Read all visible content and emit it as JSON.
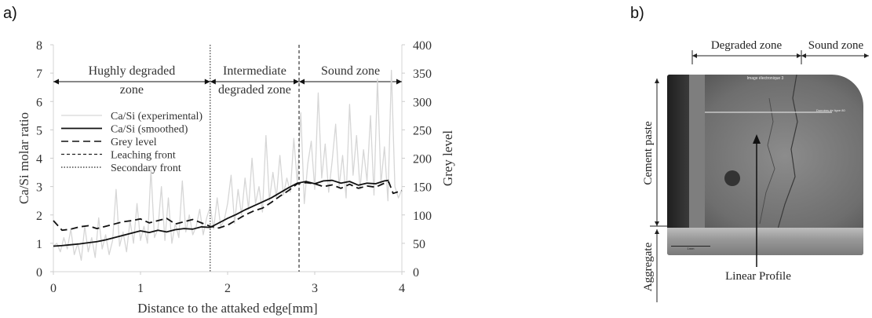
{
  "panel_labels": {
    "a": "a)",
    "b": "b)"
  },
  "chart_data": {
    "type": "line",
    "xlabel": "Distance to the attaked edge[mm]",
    "ylabel": "Ca/Si molar ratio",
    "y2label": "Grey level",
    "xlim": [
      0,
      4
    ],
    "ylim": [
      0,
      8
    ],
    "y2lim": [
      0,
      400
    ],
    "xticks": [
      "0",
      "1",
      "2",
      "3",
      "4"
    ],
    "yticks": [
      "0",
      "1",
      "2",
      "3",
      "4",
      "5",
      "6",
      "7",
      "8"
    ],
    "y2ticks": [
      "0",
      "50",
      "100",
      "150",
      "200",
      "250",
      "300",
      "350",
      "400"
    ],
    "grid": false,
    "legend_position": "left",
    "zones": [
      {
        "line1": "Hughly degraded",
        "line2": "zone",
        "x_start": 0,
        "x_end": 1.8
      },
      {
        "line1": "Intermediate",
        "line2": "degraded zone",
        "x_start": 1.8,
        "x_end": 2.82
      },
      {
        "line1": "Sound zone",
        "line2": "",
        "x_start": 2.82,
        "x_end": 4
      }
    ],
    "zone_arrow_y": 6.7,
    "fronts": [
      {
        "name": "Leaching front",
        "x": 2.82,
        "style": "dashed"
      },
      {
        "name": "Secondary front",
        "x": 1.8,
        "style": "dotted"
      }
    ],
    "series": [
      {
        "name": "Ca/Si (experimental)",
        "axis": "left",
        "color": "#d6d6d6",
        "x": [
          0.0,
          0.04,
          0.08,
          0.12,
          0.16,
          0.2,
          0.24,
          0.28,
          0.32,
          0.36,
          0.4,
          0.44,
          0.48,
          0.52,
          0.56,
          0.6,
          0.64,
          0.68,
          0.72,
          0.76,
          0.8,
          0.84,
          0.88,
          0.92,
          0.96,
          1.0,
          1.04,
          1.08,
          1.12,
          1.16,
          1.2,
          1.24,
          1.28,
          1.32,
          1.36,
          1.4,
          1.44,
          1.48,
          1.52,
          1.56,
          1.6,
          1.64,
          1.68,
          1.72,
          1.76,
          1.8,
          1.84,
          1.88,
          1.92,
          1.96,
          2.0,
          2.04,
          2.08,
          2.12,
          2.16,
          2.2,
          2.24,
          2.28,
          2.32,
          2.36,
          2.4,
          2.44,
          2.48,
          2.52,
          2.56,
          2.6,
          2.64,
          2.68,
          2.72,
          2.76,
          2.8,
          2.84,
          2.88,
          2.92,
          2.96,
          3.0,
          3.04,
          3.08,
          3.12,
          3.16,
          3.2,
          3.24,
          3.28,
          3.32,
          3.36,
          3.4,
          3.44,
          3.48,
          3.52,
          3.56,
          3.6,
          3.64,
          3.68,
          3.72,
          3.76,
          3.8,
          3.84,
          3.88,
          3.92,
          3.96,
          4.0
        ],
        "y": [
          0.9,
          1.0,
          0.7,
          1.2,
          0.8,
          1.5,
          0.6,
          1.0,
          0.4,
          1.6,
          0.7,
          1.2,
          0.5,
          1.9,
          0.8,
          1.3,
          0.6,
          1.1,
          2.9,
          0.9,
          1.4,
          0.7,
          1.8,
          1.0,
          2.4,
          1.1,
          1.6,
          1.0,
          3.6,
          1.2,
          1.5,
          3.0,
          1.1,
          2.6,
          1.0,
          1.7,
          1.2,
          3.2,
          1.4,
          2.0,
          1.3,
          1.6,
          2.2,
          1.3,
          1.9,
          2.3,
          1.5,
          2.6,
          1.6,
          1.8,
          2.4,
          3.4,
          1.7,
          2.9,
          2.0,
          3.3,
          2.2,
          4.0,
          2.4,
          3.0,
          2.1,
          4.8,
          2.5,
          3.5,
          2.6,
          4.1,
          2.7,
          3.3,
          2.8,
          4.7,
          3.1,
          5.6,
          2.4,
          3.8,
          4.6,
          2.9,
          6.3,
          3.3,
          4.5,
          2.8,
          3.9,
          5.2,
          3.0,
          4.1,
          2.6,
          5.9,
          3.4,
          4.8,
          2.9,
          4.3,
          3.2,
          5.5,
          2.7,
          6.8,
          3.1,
          4.4,
          2.5,
          7.1,
          3.0,
          2.6,
          2.9
        ]
      },
      {
        "name": "Ca/Si (smoothed)",
        "axis": "left",
        "color": "#111111",
        "x": [
          0.0,
          0.1,
          0.2,
          0.3,
          0.4,
          0.5,
          0.6,
          0.7,
          0.8,
          0.9,
          1.0,
          1.1,
          1.2,
          1.3,
          1.4,
          1.5,
          1.6,
          1.7,
          1.8,
          1.9,
          2.0,
          2.1,
          2.2,
          2.3,
          2.4,
          2.5,
          2.6,
          2.7,
          2.8,
          2.9,
          3.0,
          3.1,
          3.2,
          3.3,
          3.4,
          3.5,
          3.6,
          3.7,
          3.8,
          3.85
        ],
        "y": [
          0.9,
          0.92,
          0.95,
          0.98,
          1.02,
          1.06,
          1.12,
          1.2,
          1.28,
          1.36,
          1.44,
          1.38,
          1.46,
          1.4,
          1.48,
          1.52,
          1.5,
          1.58,
          1.56,
          1.72,
          1.88,
          2.02,
          2.18,
          2.32,
          2.46,
          2.6,
          2.78,
          2.96,
          3.12,
          3.18,
          3.1,
          3.2,
          3.22,
          3.12,
          3.18,
          3.05,
          3.12,
          3.1,
          3.2,
          3.22
        ]
      },
      {
        "name": "Grey level",
        "axis": "right",
        "color": "#111111",
        "x": [
          0.0,
          0.1,
          0.2,
          0.3,
          0.4,
          0.5,
          0.6,
          0.7,
          0.8,
          0.9,
          1.0,
          1.1,
          1.2,
          1.3,
          1.4,
          1.5,
          1.6,
          1.7,
          1.8,
          1.9,
          2.0,
          2.1,
          2.2,
          2.3,
          2.4,
          2.5,
          2.6,
          2.7,
          2.8,
          2.9,
          3.0,
          3.1,
          3.2,
          3.3,
          3.4,
          3.5,
          3.6,
          3.7,
          3.8,
          3.85,
          3.9,
          4.0
        ],
        "y": [
          90,
          73,
          75,
          79,
          81,
          76,
          80,
          84,
          88,
          90,
          93,
          86,
          90,
          94,
          84,
          88,
          92,
          86,
          80,
          77,
          82,
          91,
          100,
          107,
          112,
          122,
          133,
          143,
          155,
          157,
          155,
          150,
          153,
          147,
          154,
          147,
          151,
          149,
          156,
          158,
          138,
          143
        ]
      }
    ]
  },
  "micrograph": {
    "zone_degraded": "Degraded zone",
    "zone_sound": "Sound zone",
    "label_cement": "Cement paste",
    "label_aggregate": "Aggregate",
    "label_profile": "Linear Profile",
    "caption": "Image électronique 3",
    "profile_tag": "Données de ligne 80",
    "scale_label": "1mm"
  }
}
